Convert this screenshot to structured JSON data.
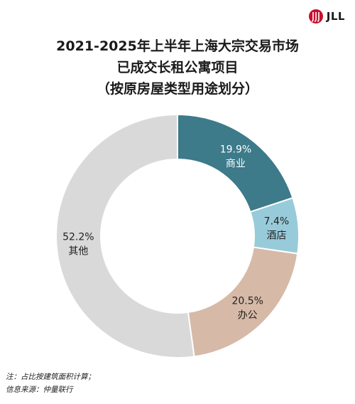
{
  "brand": {
    "name": "JLL",
    "color": "#c8102e"
  },
  "title_lines": [
    "2021-2025年上半年上海大宗交易市场",
    "已成交长租公寓项目",
    "（按原房屋类型用途划分）"
  ],
  "chart_data": {
    "type": "pie",
    "donut": true,
    "categories": [
      "商业",
      "酒店",
      "办公",
      "其他"
    ],
    "values": [
      19.9,
      7.4,
      20.5,
      52.2
    ],
    "value_labels": [
      "19.9%",
      "7.4%",
      "20.5%",
      "52.2%"
    ],
    "colors": [
      "#3d7a8a",
      "#98cbd9",
      "#d6b9a7",
      "#d9d9d9"
    ],
    "label_colors": [
      "#ffffff",
      "#222222",
      "#222222",
      "#222222"
    ],
    "start_angle_deg": 0,
    "direction": "clockwise",
    "unit": "%"
  },
  "footer": {
    "note": "注：占比按建筑面积计算；",
    "source": "信息来源：仲量联行"
  }
}
